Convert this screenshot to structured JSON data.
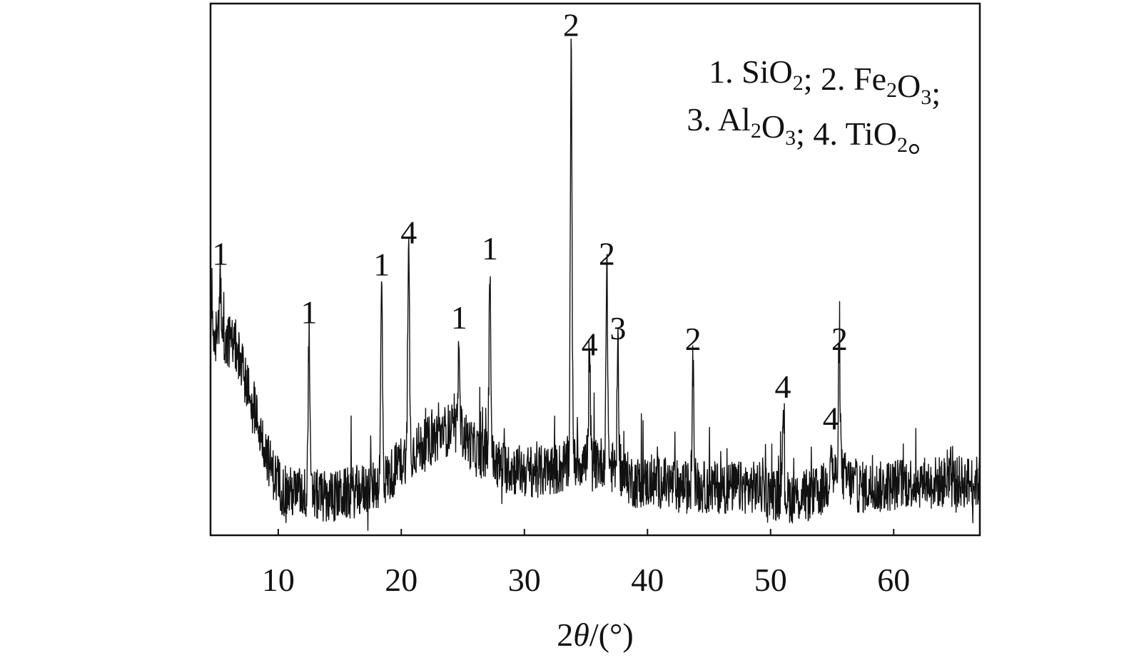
{
  "chart_data": {
    "type": "line",
    "title": "",
    "xlabel": "2θ/(°)",
    "xlabel_parts": {
      "main": "2",
      "theta": "θ",
      "rest": "/(°)"
    },
    "ylabel": "",
    "xlim": [
      4.5,
      67
    ],
    "ylim": [
      0,
      100
    ],
    "y_axis_visible": false,
    "grid": false,
    "x_ticks": [
      10,
      20,
      30,
      40,
      50,
      60
    ],
    "x_tick_labels": [
      "10",
      "20",
      "30",
      "40",
      "50",
      "60"
    ],
    "legend_location": "top-right",
    "legend": [
      {
        "text": "1. SiO",
        "sub": "2",
        "after": ";"
      },
      {
        "text": " 2. Fe",
        "sub": "2",
        "text2": "O",
        "sub2": "3",
        "after": ";"
      },
      {
        "text": "3. Al",
        "sub": "2",
        "text2": "O",
        "sub2": "3",
        "after": ";"
      },
      {
        "text": " 4. TiO",
        "sub": "2",
        "after": "。"
      }
    ],
    "legend_lines": [
      [
        {
          "t": "1. SiO"
        },
        {
          "t": "2",
          "sub": true
        },
        {
          "t": "; 2. Fe"
        },
        {
          "t": "2",
          "sub": true
        },
        {
          "t": "O"
        },
        {
          "t": "3",
          "sub": true
        },
        {
          "t": ";"
        }
      ],
      [
        {
          "t": "3. Al"
        },
        {
          "t": "2",
          "sub": true
        },
        {
          "t": "O"
        },
        {
          "t": "3",
          "sub": true
        },
        {
          "t": "; 4. TiO"
        },
        {
          "t": "2",
          "sub": true
        },
        {
          "t": "。"
        }
      ]
    ],
    "peaks": [
      {
        "label": "1",
        "x": 5.3,
        "y": 49
      },
      {
        "label": "1",
        "x": 12.5,
        "y": 38
      },
      {
        "label": "1",
        "x": 18.4,
        "y": 47
      },
      {
        "label": "4",
        "x": 20.6,
        "y": 53
      },
      {
        "label": "1",
        "x": 24.7,
        "y": 37
      },
      {
        "label": "1",
        "x": 27.2,
        "y": 50
      },
      {
        "label": "2",
        "x": 33.8,
        "y": 92
      },
      {
        "label": "4",
        "x": 35.3,
        "y": 32
      },
      {
        "label": "2",
        "x": 36.7,
        "y": 49
      },
      {
        "label": "3",
        "x": 37.6,
        "y": 35
      },
      {
        "label": "2",
        "x": 43.7,
        "y": 33
      },
      {
        "label": "4",
        "x": 51.0,
        "y": 24
      },
      {
        "label": "4",
        "x": 54.9,
        "y": 18
      },
      {
        "label": "2",
        "x": 55.6,
        "y": 33
      }
    ],
    "baseline": [
      [
        4.5,
        38
      ],
      [
        5.5,
        37
      ],
      [
        6.5,
        36
      ],
      [
        7.5,
        28
      ],
      [
        8.5,
        20
      ],
      [
        9.5,
        12
      ],
      [
        10.5,
        8
      ],
      [
        12,
        8
      ],
      [
        14,
        7
      ],
      [
        16,
        8
      ],
      [
        17.5,
        9
      ],
      [
        19,
        11
      ],
      [
        20,
        14
      ],
      [
        21,
        16
      ],
      [
        22,
        17
      ],
      [
        23,
        19
      ],
      [
        24,
        20
      ],
      [
        25,
        19
      ],
      [
        26,
        16
      ],
      [
        27,
        15
      ],
      [
        28,
        13
      ],
      [
        30,
        12
      ],
      [
        32,
        12
      ],
      [
        33.5,
        13
      ],
      [
        34.5,
        14
      ],
      [
        35.5,
        13
      ],
      [
        36.5,
        14
      ],
      [
        37.5,
        12
      ],
      [
        39,
        10
      ],
      [
        41,
        10
      ],
      [
        43,
        9
      ],
      [
        45,
        9
      ],
      [
        47,
        9
      ],
      [
        49,
        9
      ],
      [
        50,
        8
      ],
      [
        52,
        7
      ],
      [
        54,
        8
      ],
      [
        55.5,
        12
      ],
      [
        57,
        9
      ],
      [
        59,
        9
      ],
      [
        61,
        10
      ],
      [
        63,
        10
      ],
      [
        65,
        10
      ],
      [
        67,
        10
      ]
    ]
  }
}
